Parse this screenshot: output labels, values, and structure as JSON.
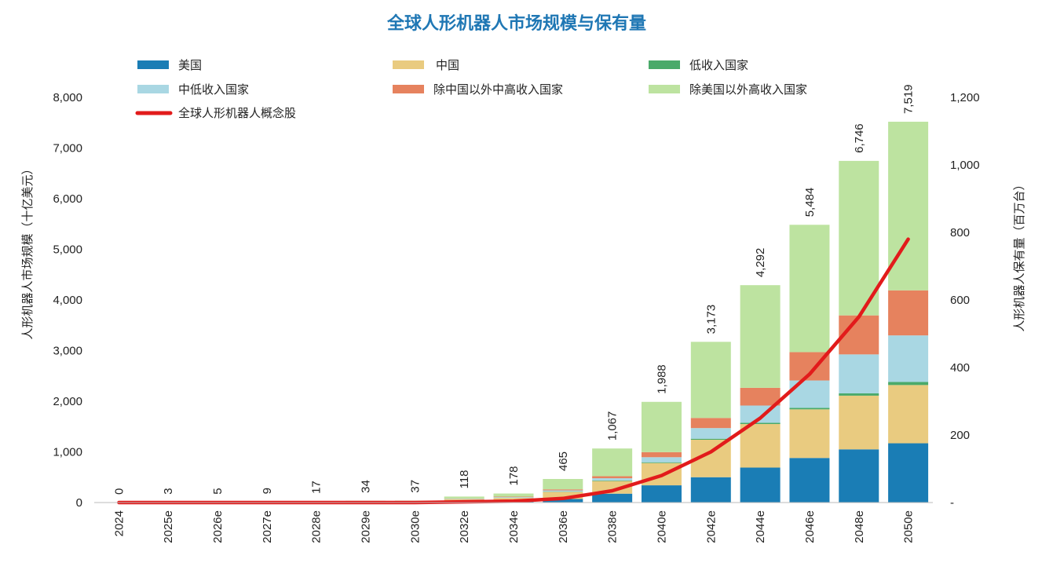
{
  "chart_data": {
    "type": "bar",
    "stacked": true,
    "title": "全球人形机器人市场规模与保有量",
    "ylabel": "人形机器人市场规模（十亿美元）",
    "y2label": "人形机器人保有量（百万台）",
    "ylim": [
      0,
      8000
    ],
    "y2lim": [
      0,
      1200
    ],
    "yticks": [
      "0",
      "1,000",
      "2,000",
      "3,000",
      "4,000",
      "5,000",
      "6,000",
      "7,000",
      "8,000"
    ],
    "y2ticks": [
      "-",
      "200",
      "400",
      "600",
      "800",
      "1,000",
      "1,200"
    ],
    "categories": [
      "2024",
      "2025e",
      "2026e",
      "2027e",
      "2028e",
      "2029e",
      "2030e",
      "2032e",
      "2034e",
      "2036e",
      "2038e",
      "2040e",
      "2042e",
      "2044e",
      "2046e",
      "2048e",
      "2050e"
    ],
    "totals": [
      0,
      3,
      5,
      9,
      17,
      34,
      37,
      118,
      178,
      465,
      1067,
      1988,
      3173,
      4292,
      5484,
      6746,
      7519
    ],
    "total_labels": [
      "0",
      "3",
      "5",
      "9",
      "17",
      "34",
      "37",
      "118",
      "178",
      "465",
      "1,067",
      "1,988",
      "3,173",
      "4,292",
      "5,484",
      "6,746",
      "7,519"
    ],
    "series": [
      {
        "name": "美国",
        "color": "#1a7db5",
        "axis": "left",
        "values": [
          0,
          1,
          2,
          3,
          6,
          10,
          11,
          25,
          35,
          70,
          175,
          340,
          500,
          690,
          880,
          1050,
          1170
        ]
      },
      {
        "name": "中国",
        "color": "#e9cb80",
        "axis": "left",
        "values": [
          0,
          1,
          1,
          3,
          5,
          10,
          11,
          40,
          55,
          140,
          250,
          440,
          740,
          860,
          960,
          1060,
          1150
        ]
      },
      {
        "name": "低收入国家",
        "color": "#4aaa6a",
        "axis": "left",
        "values": [
          0,
          0,
          0,
          0,
          0,
          0,
          0,
          0,
          1,
          5,
          10,
          15,
          20,
          25,
          30,
          45,
          60
        ]
      },
      {
        "name": "中低收入国家",
        "color": "#a9d7e3",
        "axis": "left",
        "values": [
          0,
          0,
          0,
          0,
          1,
          2,
          2,
          8,
          15,
          25,
          45,
          100,
          210,
          340,
          540,
          770,
          920
        ]
      },
      {
        "name": "除中国以外中高收入国家",
        "color": "#e6825e",
        "axis": "left",
        "values": [
          0,
          0,
          0,
          0,
          1,
          2,
          2,
          5,
          10,
          20,
          40,
          100,
          200,
          350,
          560,
          770,
          890
        ]
      },
      {
        "name": "除美国以外高收入国家",
        "color": "#bde3a0",
        "axis": "left",
        "values": [
          0,
          1,
          2,
          3,
          4,
          10,
          11,
          40,
          62,
          205,
          547,
          993,
          1503,
          2027,
          2514,
          3051,
          3329
        ]
      },
      {
        "name": "全球人形机器人概念股",
        "color": "#e21b1b",
        "axis": "right",
        "type": "line",
        "values": [
          0,
          0,
          0,
          0,
          0,
          0,
          0,
          2,
          4,
          12,
          35,
          80,
          150,
          250,
          380,
          550,
          780
        ]
      }
    ],
    "legend_position": "top",
    "grid": false
  }
}
